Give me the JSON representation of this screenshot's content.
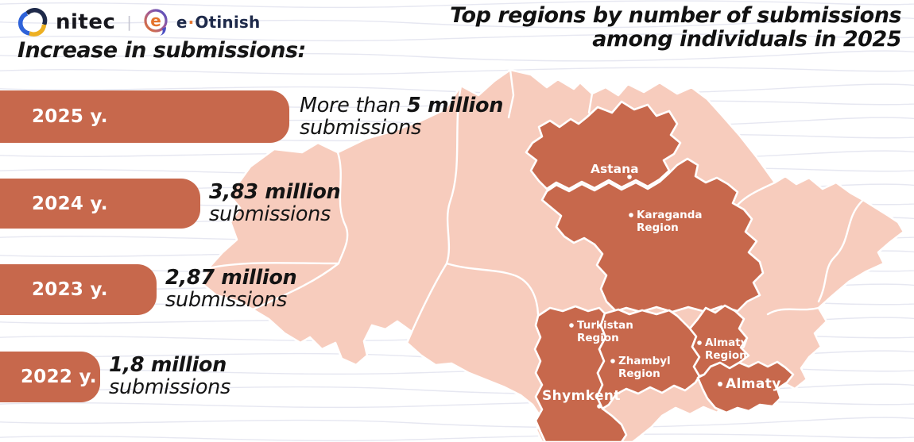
{
  "colors": {
    "accent": "#c7684c",
    "map_base": "#f7ccbd",
    "map_highlight": "#c7684c",
    "logo_navy": "#1e2a4a",
    "logo_orange": "#e4732c",
    "logo_blue": "#2e62d9",
    "logo_yellow": "#edb022"
  },
  "brand": {
    "nitec": "nitec",
    "separator": "|",
    "bubble_letter": "e",
    "eotinish_e": "e",
    "eotinish_dot": "·",
    "eotinish_rest": "Otinish"
  },
  "title": {
    "line1": "Top regions by number of submissions",
    "line2": "among individuals in 2025"
  },
  "left_panel": {
    "heading": "Increase in submissions:",
    "bars": [
      {
        "year": "2025 y.",
        "desc_prefix": "More than ",
        "desc_bold": "5 million",
        "desc_line2": "submissions"
      },
      {
        "year": "2024 y.",
        "desc_prefix": "",
        "desc_bold": "3,83 million",
        "desc_line2": "submissions"
      },
      {
        "year": "2023 y.",
        "desc_prefix": "",
        "desc_bold": "2,87 million",
        "desc_line2": "submissions"
      },
      {
        "year": "2022 y.",
        "desc_prefix": "",
        "desc_bold": "1,8 million",
        "desc_line2": "submissions"
      }
    ]
  },
  "map": {
    "labels": {
      "astana": {
        "text": "Astana"
      },
      "karaganda": {
        "line1": "Karaganda",
        "line2": "Region"
      },
      "turkistan": {
        "line1": "Turkistan",
        "line2": "Region"
      },
      "zhambyl": {
        "line1": "Zhambyl",
        "line2": "Region"
      },
      "almaty_region": {
        "line1": "Almaty",
        "line2": "Region"
      },
      "almaty_city": {
        "text": "Almaty"
      },
      "shymkent": {
        "text": "Shymkent"
      }
    }
  },
  "chart_data": [
    {
      "type": "bar",
      "orientation": "horizontal",
      "title": "Increase in submissions:",
      "categories": [
        "2025 y.",
        "2024 y.",
        "2023 y.",
        "2022 y."
      ],
      "values": [
        5,
        3.83,
        2.87,
        1.8
      ],
      "unit": "million submissions",
      "value_labels": [
        "More than 5 million submissions",
        "3,83 million submissions",
        "2,87 million submissions",
        "1,8 million submissions"
      ],
      "bar_color": "#c7684c"
    },
    {
      "type": "heatmap",
      "subtype": "choropleth-map-of-kazakhstan",
      "title": "Top regions by number of submissions among individuals in 2025",
      "highlighted_regions": [
        "Astana",
        "Karaganda Region",
        "Turkistan Region",
        "Zhambyl Region",
        "Almaty Region",
        "Almaty",
        "Shymkent"
      ],
      "highlight_color": "#c7684c",
      "base_color": "#f7ccbd"
    }
  ]
}
